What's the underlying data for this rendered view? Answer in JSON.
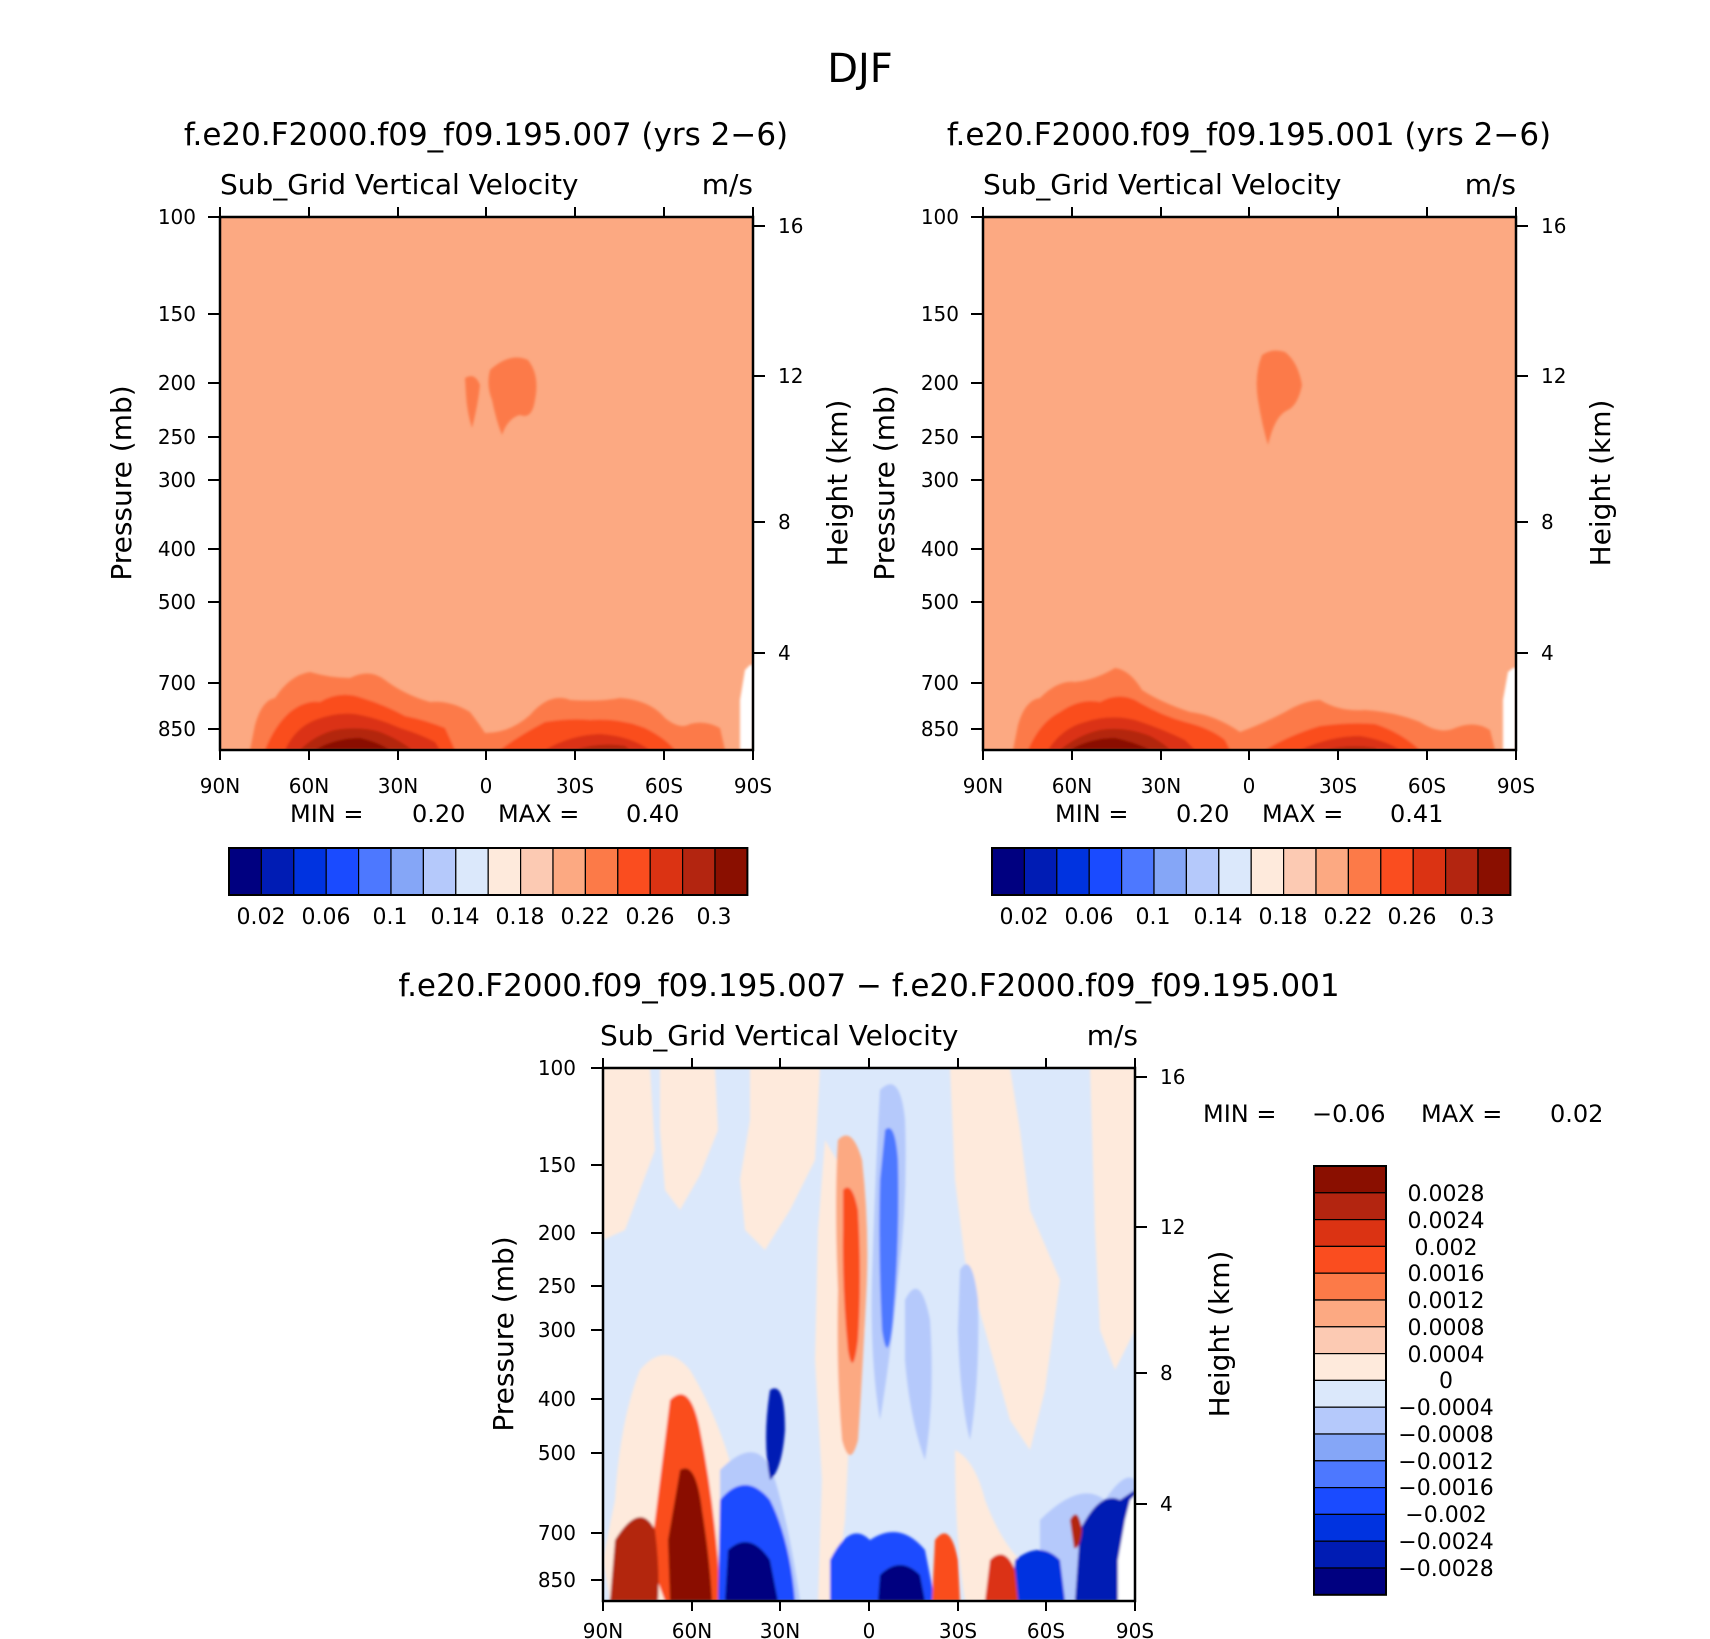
{
  "main_title": "DJF",
  "chart_data": [
    {
      "type": "heatmap",
      "title": "f.e20.F2000.f09_f09.195.007 (yrs 2−6)",
      "subtitle_left": "Sub_Grid Vertical Velocity",
      "subtitle_right": "m/s",
      "ylabel": "Pressure (mb)",
      "ylabel_right": "Height (km)",
      "x_ticks": [
        "90N",
        "60N",
        "30N",
        "0",
        "30S",
        "60S",
        "90S"
      ],
      "y_ticks": [
        "100",
        "150",
        "200",
        "250",
        "300",
        "400",
        "500",
        "700",
        "850"
      ],
      "y_ticks_right": [
        "16",
        "12",
        "8",
        "4"
      ],
      "ylim": [
        100,
        1000
      ],
      "log_scale_y": true,
      "stats": {
        "min_label": "MIN =",
        "min": "0.20",
        "max_label": "MAX =",
        "max": "0.40"
      },
      "colorbar_levels": [
        "0.02",
        "0.06",
        "0.1",
        "0.14",
        "0.18",
        "0.22",
        "0.26",
        "0.3"
      ],
      "background_value": 0.21,
      "colorbar_orientation": "horizontal"
    },
    {
      "type": "heatmap",
      "title": "f.e20.F2000.f09_f09.195.001 (yrs 2−6)",
      "subtitle_left": "Sub_Grid Vertical Velocity",
      "subtitle_right": "m/s",
      "ylabel": "Pressure (mb)",
      "ylabel_right": "Height (km)",
      "x_ticks": [
        "90N",
        "60N",
        "30N",
        "0",
        "30S",
        "60S",
        "90S"
      ],
      "y_ticks": [
        "100",
        "150",
        "200",
        "250",
        "300",
        "400",
        "500",
        "700",
        "850"
      ],
      "y_ticks_right": [
        "16",
        "12",
        "8",
        "4"
      ],
      "ylim": [
        100,
        1000
      ],
      "log_scale_y": true,
      "stats": {
        "min_label": "MIN =",
        "min": "0.20",
        "max_label": "MAX =",
        "max": "0.41"
      },
      "colorbar_levels": [
        "0.02",
        "0.06",
        "0.1",
        "0.14",
        "0.18",
        "0.22",
        "0.26",
        "0.3"
      ],
      "background_value": 0.21,
      "colorbar_orientation": "horizontal"
    },
    {
      "type": "heatmap",
      "title": "f.e20.F2000.f09_f09.195.007 − f.e20.F2000.f09_f09.195.001",
      "subtitle_left": "Sub_Grid Vertical Velocity",
      "subtitle_right": "m/s",
      "ylabel": "Pressure (mb)",
      "ylabel_right": "Height (km)",
      "x_ticks": [
        "90N",
        "60N",
        "30N",
        "0",
        "30S",
        "60S",
        "90S"
      ],
      "y_ticks": [
        "100",
        "150",
        "200",
        "250",
        "300",
        "400",
        "500",
        "700",
        "850"
      ],
      "y_ticks_right": [
        "16",
        "12",
        "8",
        "4"
      ],
      "ylim": [
        100,
        1000
      ],
      "log_scale_y": true,
      "stats": {
        "min_label": "MIN =",
        "min": "−0.06",
        "max_label": "MAX =",
        "max": "0.02"
      },
      "colorbar_levels": [
        "0.0028",
        "0.0024",
        "0.002",
        "0.0016",
        "0.0012",
        "0.0008",
        "0.0004",
        "0",
        "−0.0004",
        "−0.0008",
        "−0.0012",
        "−0.0016",
        "−0.002",
        "−0.0024",
        "−0.0028"
      ],
      "colorbar_orientation": "vertical"
    }
  ],
  "palette": {
    "colors": [
      "#000080",
      "#001cb4",
      "#0033e0",
      "#1a4bff",
      "#4d78ff",
      "#85a6f7",
      "#b5c9fb",
      "#dbe8fb",
      "#feeadc",
      "#fccab3",
      "#fca982",
      "#fc7a48",
      "#fa4d1f",
      "#db3313",
      "#b32510",
      "#8a0f00"
    ]
  }
}
